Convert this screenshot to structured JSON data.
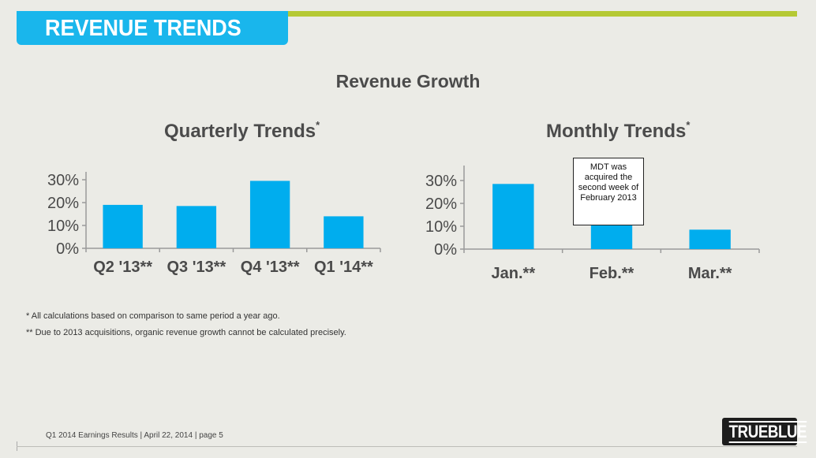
{
  "header": {
    "title": "REVENUE TRENDS"
  },
  "section_title": "Revenue Growth",
  "colors": {
    "bar": "#00adee",
    "title_bar": "#19b6ec",
    "accent_rule": "#b5c934"
  },
  "chart_data": [
    {
      "type": "bar",
      "title": "Quarterly Trends",
      "title_marker": "*",
      "categories": [
        "Q2 '13**",
        "Q3 '13**",
        "Q4 '13**",
        "Q1 '14**"
      ],
      "values": [
        19,
        18.5,
        29.5,
        14
      ],
      "y_ticks": [
        "0%",
        "10%",
        "20%",
        "30%"
      ],
      "ylim": [
        0,
        30
      ],
      "grid": false,
      "xlabel": "",
      "ylabel": ""
    },
    {
      "type": "bar",
      "title": "Monthly Trends",
      "title_marker": "*",
      "categories": [
        "Jan.**",
        "Feb.**",
        "Mar.**"
      ],
      "values": [
        28.5,
        10.5,
        8.5
      ],
      "y_ticks": [
        "0%",
        "10%",
        "20%",
        "30%"
      ],
      "ylim": [
        0,
        30
      ],
      "grid": false,
      "xlabel": "",
      "ylabel": "",
      "annotation": "MDT was acquired the second week of February 2013"
    }
  ],
  "footnotes": [
    "* All calculations based on comparison to same period a year ago.",
    "** Due to 2013 acquisitions, organic revenue growth cannot be calculated precisely."
  ],
  "footer": {
    "text": "Q1 2014 Earnings Results | April 22, 2014  | page 5"
  },
  "logo": {
    "text": "TRUEBLUE"
  }
}
